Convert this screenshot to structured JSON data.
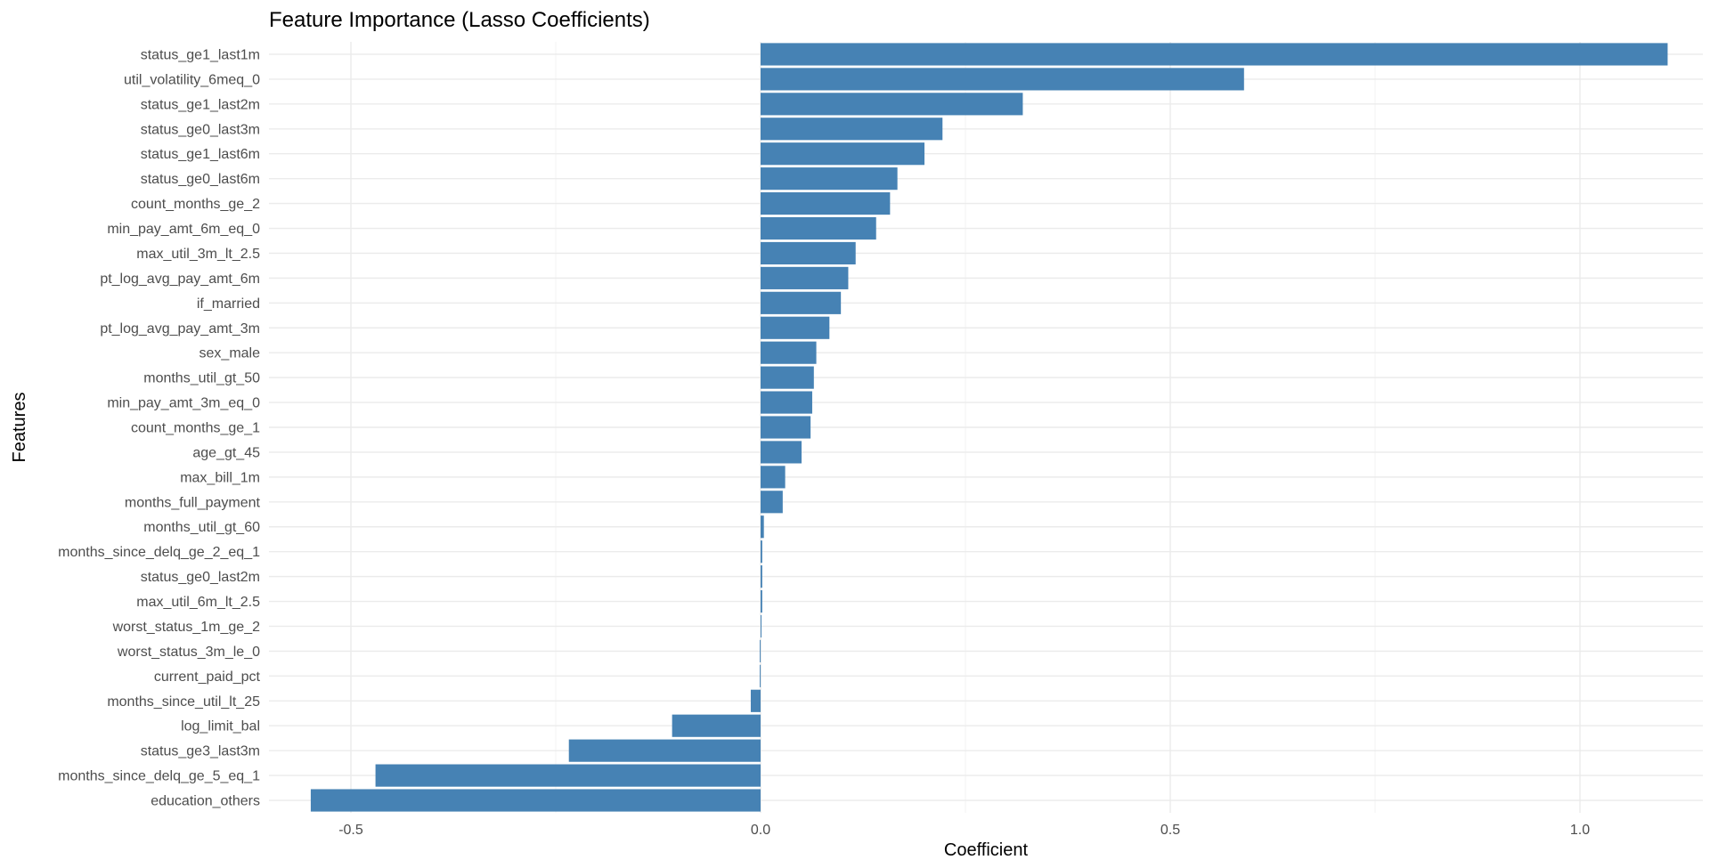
{
  "chart_data": {
    "type": "bar",
    "orientation": "horizontal",
    "title": "Feature Importance (Lasso Coefficients)",
    "xlabel": "Coefficient",
    "ylabel": "Features",
    "xlim": [
      -0.6,
      1.15
    ],
    "x_ticks": [
      -0.5,
      0.0,
      0.5,
      1.0
    ],
    "x_tick_labels": [
      "-0.5",
      "0.0",
      "0.5",
      "1.0"
    ],
    "grid": true,
    "bar_color": "#4682B4",
    "categories": [
      "status_ge1_last1m",
      "util_volatility_6meq_0",
      "status_ge1_last2m",
      "status_ge0_last3m",
      "status_ge1_last6m",
      "status_ge0_last6m",
      "count_months_ge_2",
      "min_pay_amt_6m_eq_0",
      "max_util_3m_lt_2.5",
      "pt_log_avg_pay_amt_6m",
      "if_married",
      "pt_log_avg_pay_amt_3m",
      "sex_male",
      "months_util_gt_50",
      "min_pay_amt_3m_eq_0",
      "count_months_ge_1",
      "age_gt_45",
      "max_bill_1m",
      "months_full_payment",
      "months_util_gt_60",
      "months_since_delq_ge_2_eq_1",
      "status_ge0_last2m",
      "max_util_6m_lt_2.5",
      "worst_status_1m_ge_2",
      "worst_status_3m_le_0",
      "current_paid_pct",
      "months_since_util_lt_25",
      "log_limit_bal",
      "status_ge3_last3m",
      "months_since_delq_ge_5_eq_1",
      "education_others"
    ],
    "values": [
      1.107,
      0.59,
      0.32,
      0.222,
      0.2,
      0.167,
      0.158,
      0.141,
      0.116,
      0.107,
      0.098,
      0.084,
      0.068,
      0.065,
      0.063,
      0.061,
      0.05,
      0.03,
      0.027,
      0.004,
      0.002,
      0.002,
      0.002,
      0.0005,
      -0.001,
      -0.001,
      -0.012,
      -0.108,
      -0.234,
      -0.47,
      -0.549
    ]
  }
}
